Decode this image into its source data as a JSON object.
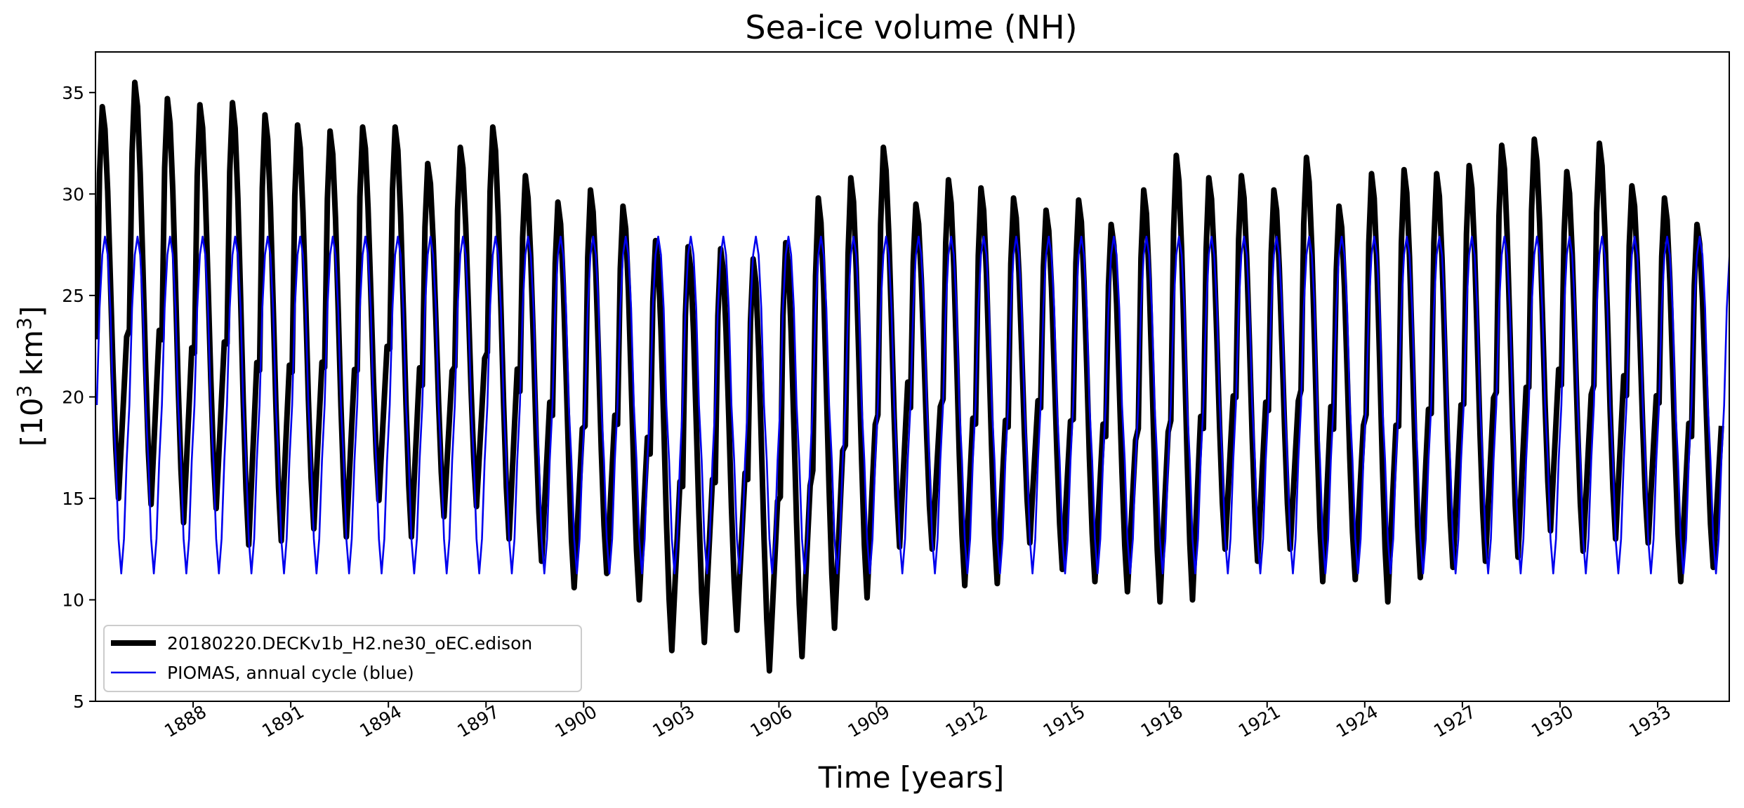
{
  "chart_data": {
    "type": "line",
    "title": "Sea-ice volume (NH)",
    "xlabel": "Time [years]",
    "ylabel": "[10³ km³]",
    "ylabel_parts": {
      "open": "[10",
      "sup1": "3",
      "unit": " km",
      "sup2": "3",
      "close": "]"
    },
    "xlim": [
      1885.0,
      1935.2
    ],
    "ylim": [
      5,
      37
    ],
    "yticks": [
      5,
      10,
      15,
      20,
      25,
      30,
      35
    ],
    "xticks": [
      1888,
      1891,
      1894,
      1897,
      1900,
      1903,
      1906,
      1909,
      1912,
      1915,
      1918,
      1921,
      1924,
      1927,
      1930,
      1933
    ],
    "grid": false,
    "legend_position": "lower-left",
    "series": [
      {
        "name": "20180220.DECKv1b_H2.ne30_oEC.edison",
        "color": "#000000",
        "style": "thick",
        "description": "monthly model sea-ice volume; annual max / min per year",
        "years": [
          1885,
          1886,
          1887,
          1888,
          1889,
          1890,
          1891,
          1892,
          1893,
          1894,
          1895,
          1896,
          1897,
          1898,
          1899,
          1900,
          1901,
          1902,
          1903,
          1904,
          1905,
          1906,
          1907,
          1908,
          1909,
          1910,
          1911,
          1912,
          1913,
          1914,
          1915,
          1916,
          1917,
          1918,
          1919,
          1920,
          1921,
          1922,
          1923,
          1924,
          1925,
          1926,
          1927,
          1928,
          1929,
          1930,
          1931,
          1932,
          1933,
          1934
        ],
        "annual_max": [
          34.3,
          35.5,
          34.7,
          34.4,
          34.5,
          33.9,
          33.4,
          33.1,
          33.3,
          33.3,
          31.5,
          32.3,
          33.3,
          30.9,
          29.6,
          30.2,
          29.4,
          27.7,
          27.4,
          27.3,
          26.8,
          27.6,
          29.8,
          30.8,
          32.3,
          29.5,
          30.7,
          30.3,
          29.8,
          29.2,
          29.7,
          28.5,
          30.2,
          31.9,
          30.8,
          30.9,
          30.2,
          31.8,
          29.4,
          31.0,
          31.2,
          31.0,
          31.4,
          32.4,
          32.7,
          31.1,
          32.5,
          30.4,
          29.8,
          28.5
        ],
        "annual_min": [
          15.0,
          14.7,
          13.8,
          14.5,
          12.7,
          12.9,
          13.5,
          13.1,
          14.9,
          13.1,
          14.1,
          14.6,
          13.0,
          11.9,
          10.6,
          11.3,
          10.0,
          7.5,
          7.9,
          8.5,
          6.5,
          7.2,
          8.6,
          10.1,
          12.6,
          12.5,
          10.7,
          10.8,
          12.8,
          11.5,
          10.9,
          10.4,
          9.9,
          10.0,
          12.5,
          11.9,
          12.5,
          10.9,
          11.0,
          9.9,
          11.1,
          11.6,
          11.9,
          12.1,
          13.4,
          12.4,
          13.0,
          12.8,
          10.9,
          11.6
        ]
      },
      {
        "name": "PIOMAS, annual cycle (blue)",
        "color": "#0000ee",
        "style": "thin",
        "description": "repeated PIOMAS climatological annual cycle",
        "annual_max": 27.9,
        "annual_min": 11.3
      }
    ]
  }
}
